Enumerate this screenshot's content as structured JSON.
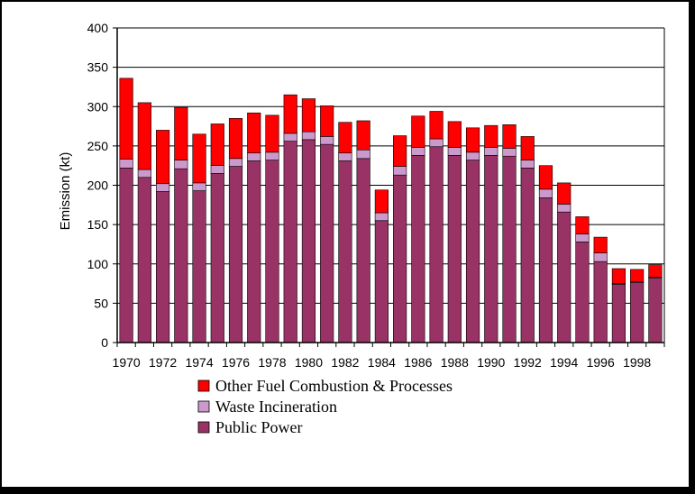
{
  "chart_data": {
    "type": "bar",
    "stacked": true,
    "ylabel": "Emission (kt)",
    "ylim": [
      0,
      400
    ],
    "yticks": [
      "0",
      "50",
      "100",
      "150",
      "200",
      "250",
      "300",
      "350",
      "400"
    ],
    "grid": "horizontal",
    "categories": [
      "1970",
      "1971",
      "1972",
      "1973",
      "1974",
      "1975",
      "1976",
      "1977",
      "1978",
      "1979",
      "1980",
      "1981",
      "1982",
      "1983",
      "1984",
      "1985",
      "1986",
      "1987",
      "1988",
      "1989",
      "1990",
      "1991",
      "1992",
      "1993",
      "1994",
      "1995",
      "1996",
      "1997",
      "1998",
      "1999"
    ],
    "xtick_labels": [
      "1970",
      "1972",
      "1974",
      "1976",
      "1978",
      "1980",
      "1982",
      "1984",
      "1986",
      "1988",
      "1990",
      "1992",
      "1994",
      "1996",
      "1998"
    ],
    "legend_position": "bottom",
    "series": [
      {
        "name": "Public Power",
        "color": "#993366",
        "values": [
          222,
          210,
          192,
          221,
          193,
          215,
          224,
          231,
          232,
          256,
          258,
          252,
          231,
          234,
          155,
          213,
          238,
          249,
          238,
          232,
          238,
          237,
          222,
          184,
          166,
          128,
          103,
          74,
          76,
          82
        ]
      },
      {
        "name": "Waste Incineration",
        "color": "#cc99cc",
        "values": [
          11,
          10,
          10,
          11,
          10,
          10,
          10,
          10,
          10,
          10,
          10,
          10,
          10,
          11,
          10,
          11,
          10,
          10,
          10,
          10,
          10,
          10,
          10,
          11,
          10,
          10,
          11,
          1,
          1,
          1
        ]
      },
      {
        "name": "Other Fuel Combustion & Processes",
        "color": "#ff0000",
        "values": [
          103,
          85,
          68,
          67,
          62,
          53,
          51,
          51,
          47,
          49,
          42,
          39,
          39,
          37,
          29,
          39,
          40,
          35,
          33,
          31,
          28,
          30,
          30,
          30,
          27,
          22,
          20,
          19,
          16,
          16
        ]
      }
    ]
  }
}
